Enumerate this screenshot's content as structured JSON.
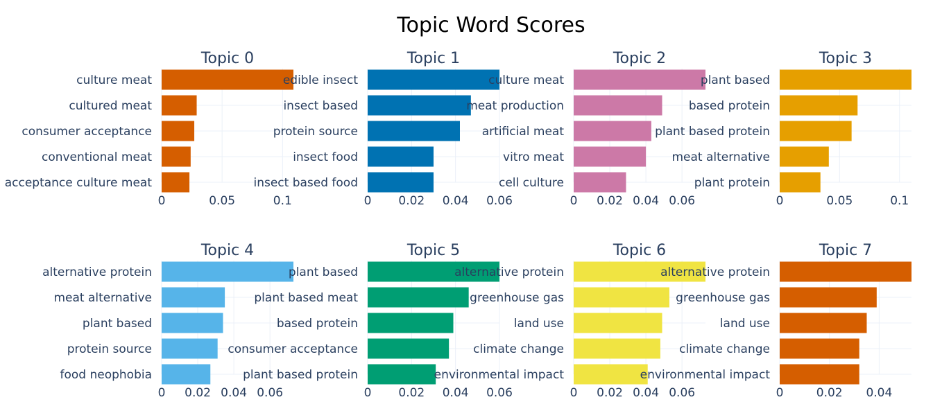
{
  "title": "Topic Word Scores",
  "chart_data": [
    {
      "type": "bar",
      "title": "Topic 0",
      "color": "#D55E00",
      "categories": [
        "culture meat",
        "cultured meat",
        "consumer acceptance",
        "conventional meat",
        "acceptance culture meat"
      ],
      "values": [
        0.109,
        0.029,
        0.027,
        0.024,
        0.023
      ],
      "xlim": [
        0,
        0.109
      ],
      "xticks": [
        0,
        0.05,
        0.1
      ],
      "xtick_labels": [
        "0",
        "0.05",
        "0.1"
      ]
    },
    {
      "type": "bar",
      "title": "Topic 1",
      "color": "#0072B2",
      "categories": [
        "edible insect",
        "insect based",
        "protein source",
        "insect food",
        "insect based food"
      ],
      "values": [
        0.06,
        0.047,
        0.042,
        0.03,
        0.03
      ],
      "xlim": [
        0,
        0.06
      ],
      "xticks": [
        0,
        0.02,
        0.04,
        0.06
      ],
      "xtick_labels": [
        "0",
        "0.02",
        "0.04",
        "0.06"
      ]
    },
    {
      "type": "bar",
      "title": "Topic 2",
      "color": "#CC79A7",
      "categories": [
        "culture meat",
        "meat production",
        "artificial meat",
        "vitro meat",
        "cell culture"
      ],
      "values": [
        0.073,
        0.049,
        0.043,
        0.04,
        0.029
      ],
      "xlim": [
        0,
        0.073
      ],
      "xticks": [
        0,
        0.02,
        0.04,
        0.06
      ],
      "xtick_labels": [
        "0",
        "0.02",
        "0.04",
        "0.06"
      ]
    },
    {
      "type": "bar",
      "title": "Topic 3",
      "color": "#E69F00",
      "categories": [
        "plant based",
        "based protein",
        "plant based protein",
        "meat alternative",
        "plant protein"
      ],
      "values": [
        0.11,
        0.065,
        0.06,
        0.041,
        0.034
      ],
      "xlim": [
        0,
        0.11
      ],
      "xticks": [
        0,
        0.05,
        0.1
      ],
      "xtick_labels": [
        "0",
        "0.05",
        "0.1"
      ]
    },
    {
      "type": "bar",
      "title": "Topic 4",
      "color": "#56B4E9",
      "categories": [
        "alternative protein",
        "meat alternative",
        "plant based",
        "protein source",
        "food neophobia"
      ],
      "values": [
        0.073,
        0.035,
        0.034,
        0.031,
        0.027
      ],
      "xlim": [
        0,
        0.073
      ],
      "xticks": [
        0,
        0.02,
        0.04,
        0.06
      ],
      "xtick_labels": [
        "0",
        "0.02",
        "0.04",
        "0.06"
      ]
    },
    {
      "type": "bar",
      "title": "Topic 5",
      "color": "#009E73",
      "categories": [
        "plant based",
        "plant based meat",
        "based protein",
        "consumer acceptance",
        "plant based protein"
      ],
      "values": [
        0.06,
        0.046,
        0.039,
        0.037,
        0.031
      ],
      "xlim": [
        0,
        0.06
      ],
      "xticks": [
        0,
        0.02,
        0.04,
        0.06
      ],
      "xtick_labels": [
        "0",
        "0.02",
        "0.04",
        "0.06"
      ]
    },
    {
      "type": "bar",
      "title": "Topic 6",
      "color": "#F0E442",
      "categories": [
        "alternative protein",
        "greenhouse gas",
        "land use",
        "climate change",
        "environmental impact"
      ],
      "values": [
        0.073,
        0.053,
        0.049,
        0.048,
        0.041
      ],
      "xlim": [
        0,
        0.073
      ],
      "xticks": [
        0,
        0.02,
        0.04,
        0.06
      ],
      "xtick_labels": [
        "0",
        "0.02",
        "0.04",
        "0.06"
      ]
    },
    {
      "type": "bar",
      "title": "Topic 7",
      "color": "#D55E00",
      "categories": [
        "alternative protein",
        "greenhouse gas",
        "land use",
        "climate change",
        "environmental impact"
      ],
      "values": [
        0.053,
        0.039,
        0.035,
        0.032,
        0.032
      ],
      "xlim": [
        0,
        0.053
      ],
      "xticks": [
        0,
        0.02,
        0.04
      ],
      "xtick_labels": [
        "0",
        "0.02",
        "0.04"
      ]
    }
  ]
}
